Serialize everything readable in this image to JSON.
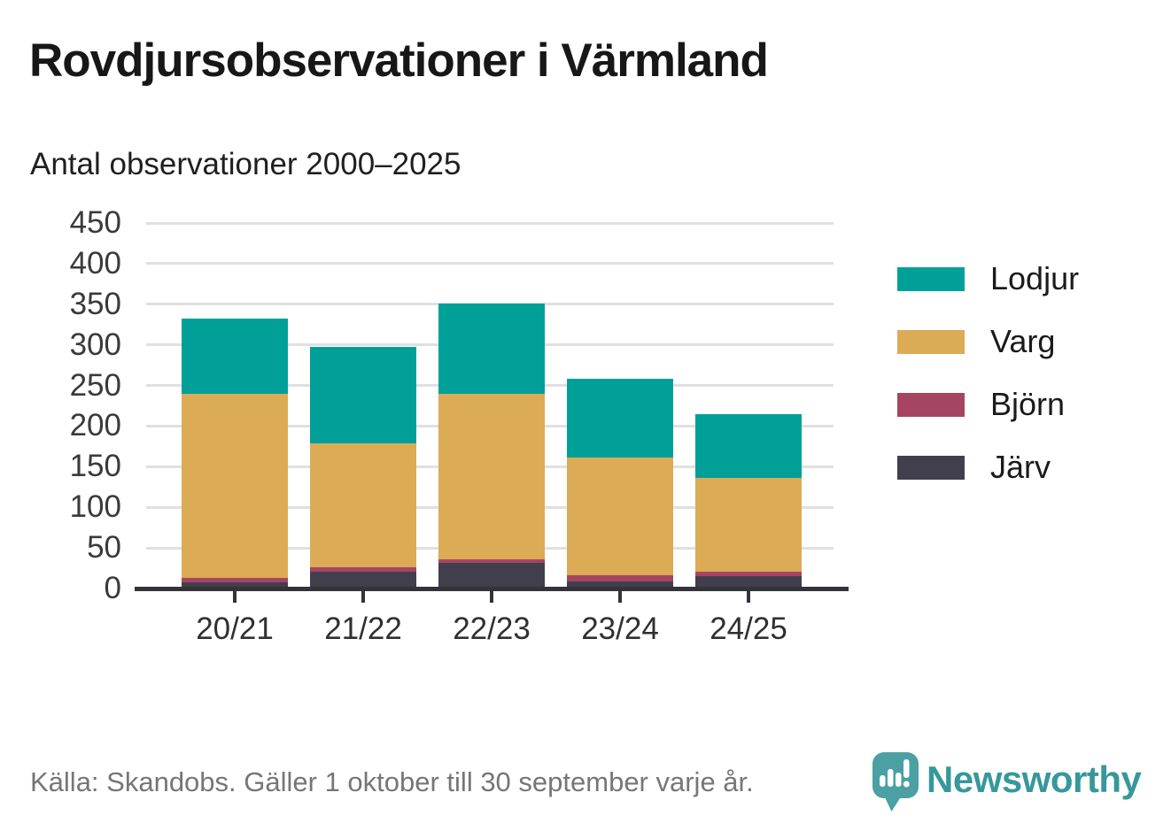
{
  "header": {
    "title": "Rovdjursobservationer i Värmland",
    "subtitle": "Antal observationer 2000–2025"
  },
  "chart_data": {
    "type": "bar",
    "stacked": true,
    "title": "Rovdjursobservationer i Värmland",
    "subtitle": "Antal observationer 2000–2025",
    "categories": [
      "20/21",
      "21/22",
      "22/23",
      "23/24",
      "24/25"
    ],
    "series": [
      {
        "name": "Lodjur",
        "color": "#00a098",
        "values": [
          92,
          118,
          112,
          97,
          79
        ]
      },
      {
        "name": "Varg",
        "color": "#dbab55",
        "values": [
          227,
          153,
          203,
          145,
          115
        ]
      },
      {
        "name": "Björn",
        "color": "#a64562",
        "values": [
          6,
          5,
          5,
          7,
          6
        ]
      },
      {
        "name": "Järv",
        "color": "#413f4d",
        "values": [
          5,
          19,
          29,
          7,
          13
        ]
      }
    ],
    "stack_order_bottom_to_top": [
      "Järv",
      "Björn",
      "Varg",
      "Lodjur"
    ],
    "totals": [
      330,
      295,
      349,
      256,
      213
    ],
    "xlabel": "",
    "ylabel": "",
    "ylim": [
      0,
      450
    ],
    "ytick_step": 50,
    "grid": true,
    "legend_position": "right"
  },
  "footer": {
    "source": "Källa: Skandobs. Gäller 1 oktober till 30 september varje år.",
    "brand": "Newsworthy"
  },
  "colors": {
    "teal": "#00a098",
    "gold": "#dbab55",
    "maroon": "#a64562",
    "dark_slate": "#413f4d",
    "axis": "#34333a",
    "grid": "#e0e0e0",
    "brand_teal": "#37989b"
  }
}
